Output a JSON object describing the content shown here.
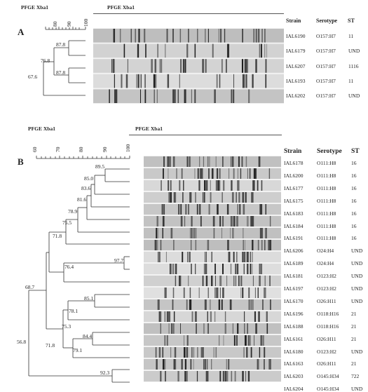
{
  "figure": {
    "panels": [
      {
        "letter": "A",
        "method_label_dendrogram": "PFGE Xba1",
        "method_label_gel": "PFGE Xba1",
        "scale_ticks": [
          "80",
          "90",
          "100"
        ],
        "column_headers": {
          "strain": "Strain",
          "serotype": "Serotype",
          "st": "ST"
        },
        "rows": [
          {
            "strain": "IAL6190",
            "serotype": "O157:H7",
            "st": "11"
          },
          {
            "strain": "IAL6179",
            "serotype": "O157:H7",
            "st": "UND"
          },
          {
            "strain": "IAL6207",
            "serotype": "O157:H7",
            "st": "1116"
          },
          {
            "strain": "IAL6193",
            "serotype": "O157:H7",
            "st": "11"
          },
          {
            "strain": "IAL6202",
            "serotype": "O157:H7",
            "st": "UND"
          }
        ],
        "node_labels": [
          "87.8",
          "76.8",
          "87.8",
          "67.6"
        ]
      },
      {
        "letter": "B",
        "method_label_dendrogram": "PFGE Xba1",
        "method_label_gel": "PFGE Xba1",
        "scale_ticks": [
          "60",
          "70",
          "80",
          "90",
          "100"
        ],
        "column_headers": {
          "strain": "Strain",
          "serotype": "Serotype",
          "st": "ST"
        },
        "rows": [
          {
            "strain": "IAL6178",
            "serotype": "O111:H8",
            "st": "16"
          },
          {
            "strain": "IAL6200",
            "serotype": "O111:H8",
            "st": "16"
          },
          {
            "strain": "IAL6177",
            "serotype": "O111:H8",
            "st": "16"
          },
          {
            "strain": "IAL6175",
            "serotype": "O111:H8",
            "st": "16"
          },
          {
            "strain": "IAL6183",
            "serotype": "O111:H8",
            "st": "16"
          },
          {
            "strain": "IAL6184",
            "serotype": "O111:H8",
            "st": "16"
          },
          {
            "strain": "IAL6191",
            "serotype": "O111:H8",
            "st": "16"
          },
          {
            "strain": "IAL6206",
            "serotype": "O24:H4",
            "st": "UND"
          },
          {
            "strain": "IAL6189",
            "serotype": "O24:H4",
            "st": "UND"
          },
          {
            "strain": "IAL6181",
            "serotype": "O123:H2",
            "st": "UND"
          },
          {
            "strain": "IAL6197",
            "serotype": "O123:H2",
            "st": "UND"
          },
          {
            "strain": "IAL6170",
            "serotype": "O26:H11",
            "st": "UND"
          },
          {
            "strain": "IAL6196",
            "serotype": "O118:H16",
            "st": "21"
          },
          {
            "strain": "IAL6188",
            "serotype": "O118:H16",
            "st": "21"
          },
          {
            "strain": "IAL6161",
            "serotype": "O26:H11",
            "st": "21"
          },
          {
            "strain": "IAL6180",
            "serotype": "O123:H2",
            "st": "UND"
          },
          {
            "strain": "IAL6163",
            "serotype": "O26:H11",
            "st": "21"
          },
          {
            "strain": "IAL6203",
            "serotype": "O145:H34",
            "st": "722"
          },
          {
            "strain": "IAL6204",
            "serotype": "O145:H34",
            "st": "UND"
          }
        ],
        "node_labels": [
          "89.5",
          "85.0",
          "83.6",
          "81.6",
          "78.9",
          "75.5",
          "71.8",
          "97.7",
          "76.4",
          "85.1",
          "78.1",
          "84.4",
          "79.1",
          "75.3",
          "71.8",
          "68.7",
          "92.3",
          "56.8"
        ]
      }
    ]
  }
}
